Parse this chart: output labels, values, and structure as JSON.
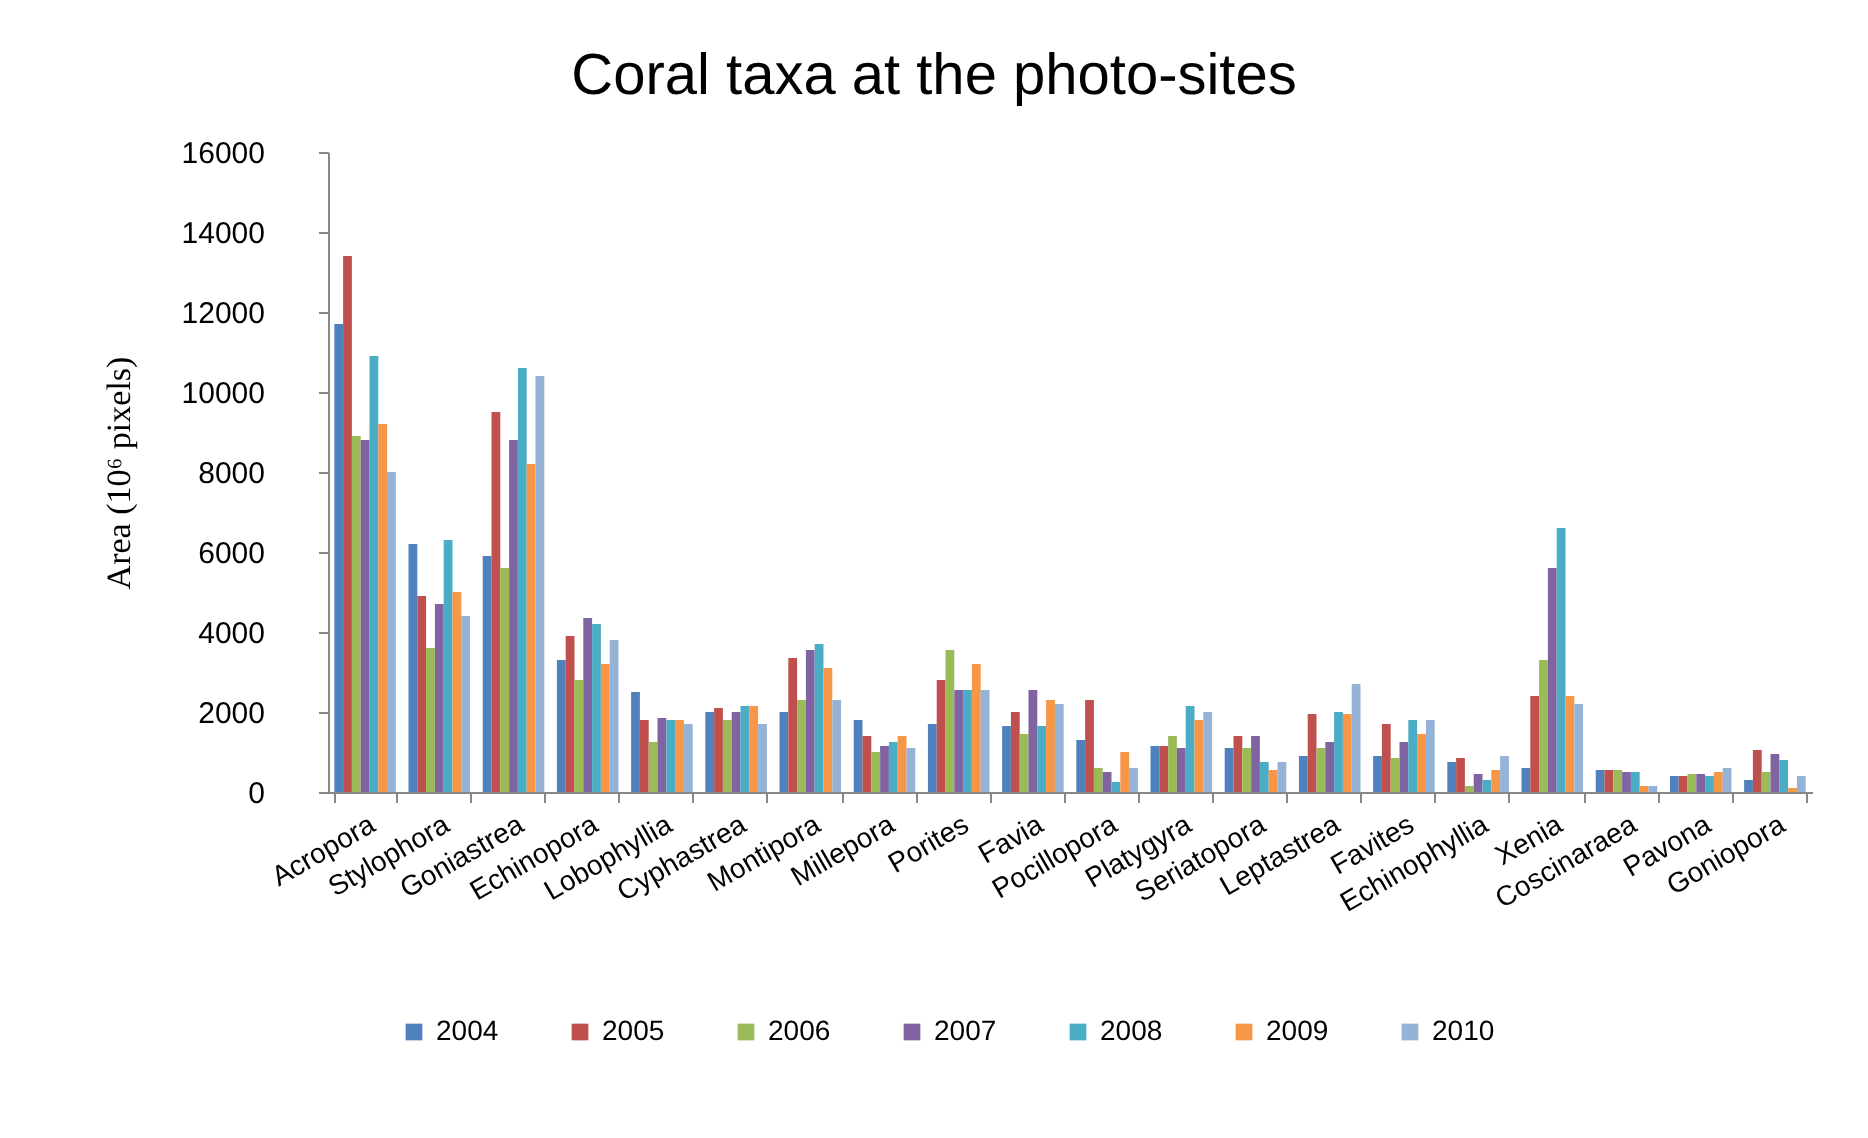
{
  "chart_data": {
    "type": "bar",
    "title": "Coral taxa at the photo-sites",
    "ylabel": "Area (10⁶ pixels)",
    "categories": [
      "Acropora",
      "Stylophora",
      "Goniastrea",
      "Echinopora",
      "Lobophyllia",
      "Cyphastrea",
      "Montipora",
      "Millepora",
      "Porites",
      "Favia",
      "Pocillopora",
      "Platygyra",
      "Seriatopora",
      "Leptastrea",
      "Favites",
      "Echinophyllia",
      "Xenia",
      "Coscinaraea",
      "Pavona",
      "Goniopora"
    ],
    "series": [
      {
        "name": "2004",
        "color": "#4f81bd",
        "values": [
          11700,
          6200,
          5900,
          3300,
          2500,
          2000,
          2000,
          1800,
          1700,
          1650,
          1300,
          1150,
          1100,
          900,
          900,
          750,
          600,
          550,
          400,
          300
        ]
      },
      {
        "name": "2005",
        "color": "#c0504d",
        "values": [
          13400,
          4900,
          9500,
          3900,
          1800,
          2100,
          3350,
          1400,
          2800,
          2000,
          2300,
          1150,
          1400,
          1950,
          1700,
          850,
          2400,
          550,
          400,
          1050
        ]
      },
      {
        "name": "2006",
        "color": "#9bbb59",
        "values": [
          8900,
          3600,
          5600,
          2800,
          1250,
          1800,
          2300,
          1000,
          3550,
          1450,
          600,
          1400,
          1100,
          1100,
          850,
          150,
          3300,
          550,
          450,
          500
        ]
      },
      {
        "name": "2007",
        "color": "#8064a2",
        "values": [
          8800,
          4700,
          8800,
          4350,
          1850,
          2000,
          3550,
          1150,
          2550,
          2550,
          500,
          1100,
          1400,
          1250,
          1250,
          450,
          5600,
          500,
          450,
          950
        ]
      },
      {
        "name": "2008",
        "color": "#4bacc6",
        "values": [
          10900,
          6300,
          10600,
          4200,
          1800,
          2150,
          3700,
          1250,
          2550,
          1650,
          250,
          2150,
          750,
          2000,
          1800,
          300,
          6600,
          500,
          400,
          800
        ]
      },
      {
        "name": "2009",
        "color": "#f79646",
        "values": [
          9200,
          5000,
          8200,
          3200,
          1800,
          2150,
          3100,
          1400,
          3200,
          2300,
          1000,
          1800,
          550,
          1950,
          1450,
          550,
          2400,
          150,
          500,
          100
        ]
      },
      {
        "name": "2010",
        "color": "#95b3d7",
        "values": [
          8000,
          4400,
          10400,
          3800,
          1700,
          1700,
          2300,
          1100,
          2550,
          2200,
          600,
          2000,
          750,
          2700,
          1800,
          900,
          2200,
          150,
          600,
          400
        ]
      }
    ],
    "ylim": [
      0,
      16000
    ],
    "yticks": [
      0,
      2000,
      4000,
      6000,
      8000,
      10000,
      12000,
      14000,
      16000
    ],
    "legend": "bottom"
  }
}
